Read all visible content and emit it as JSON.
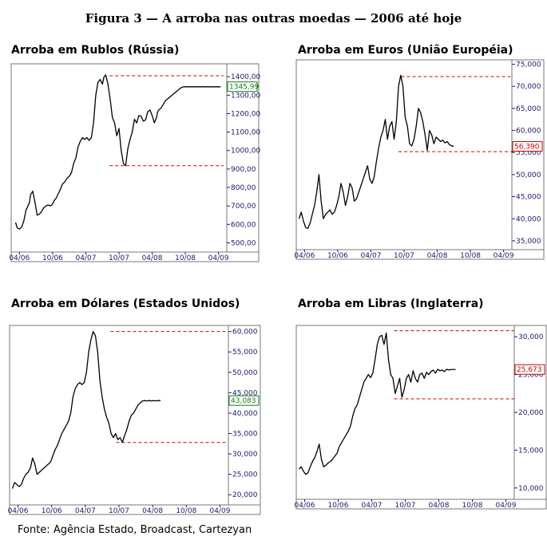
{
  "figure_title": "Figura 3 — A arroba nas outras moedas — 2006 até hoje",
  "source": "Fonte: Agência Estado, Broadcast, Cartezyan",
  "colors": {
    "line": "#000000",
    "reference": "#cc0000",
    "axis": "#1a1a6e",
    "frame": "#777777"
  },
  "chart_data": [
    {
      "type": "line",
      "title": "Arroba em Rublos (Rússia)",
      "x_ticks": [
        "04/06",
        "10/06",
        "04/07",
        "10/07",
        "04/08",
        "10/08",
        "04/09"
      ],
      "y_ticks": [
        "500,00",
        "600,00",
        "700,00",
        "800,00",
        "900,00",
        "1000,00",
        "1100,00",
        "1200,00",
        "1300,00",
        "1400,00"
      ],
      "y_tick_values": [
        500,
        600,
        700,
        800,
        900,
        1000,
        1100,
        1200,
        1300,
        1400
      ],
      "ylim": [
        450,
        1470
      ],
      "last_value_label": "1345,99",
      "last_value_color": "#1a7a1a",
      "reference_lines": [
        1405,
        918
      ],
      "x": [
        -0.7,
        -0.4,
        0.0,
        0.4,
        0.8,
        1.0,
        1.2,
        1.4,
        1.6,
        1.8,
        2.0,
        2.4,
        2.8,
        3.2,
        3.6,
        4.0,
        4.4,
        4.8,
        5.2,
        5.6,
        6.0,
        6.3,
        6.6,
        7.0,
        7.4,
        7.8,
        8.2,
        8.6,
        9.0,
        9.4,
        9.8,
        10.2,
        10.6,
        11.0,
        11.4,
        11.8,
        12.2,
        12.6,
        13.0,
        13.4,
        13.8,
        14.2,
        14.6,
        15.0,
        15.3,
        15.6,
        16.0,
        16.4,
        16.8,
        17.2,
        17.6,
        18.0,
        18.4,
        18.8,
        19.2,
        19.6,
        20.0,
        20.4,
        20.8,
        21.2,
        21.6,
        22.0,
        22.4,
        22.8,
        23.2,
        23.6,
        24.0,
        24.4,
        24.8,
        25.0,
        25.2,
        25.6,
        26.0,
        26.4,
        26.8,
        27.2,
        27.6,
        28.0,
        28.4,
        28.8,
        29.2,
        29.6,
        30.0,
        30.4,
        30.8,
        31.2,
        31.6,
        32.0,
        32.4,
        32.8,
        33.2,
        33.6,
        34.0,
        34.4,
        34.8,
        35.2,
        35.6,
        36.0,
        36.4
      ],
      "y": [
        610,
        580,
        575,
        585,
        620,
        650,
        680,
        690,
        705,
        715,
        760,
        780,
        720,
        650,
        655,
        670,
        690,
        700,
        705,
        700,
        710,
        730,
        740,
        765,
        790,
        820,
        830,
        850,
        860,
        880,
        930,
        960,
        1020,
        1050,
        1070,
        1060,
        1070,
        1055,
        1070,
        1150,
        1300,
        1370,
        1385,
        1360,
        1400,
        1410,
        1360,
        1280,
        1180,
        1150,
        1080,
        1120,
        1000,
        930,
        918,
        1010,
        1060,
        1100,
        1170,
        1150,
        1190,
        1185,
        1160,
        1165,
        1210,
        1220,
        1190,
        1150,
        1180,
        1210,
        1220,
        1230,
        1250,
        1270,
        1280,
        1290,
        1300,
        1310,
        1320,
        1330,
        1340,
        1345,
        1346,
        1345,
        1346,
        1345,
        1346,
        1345,
        1346,
        1345,
        1346,
        1345,
        1346,
        1345,
        1346,
        1345,
        1346,
        1345,
        1346
      ]
    },
    {
      "type": "line",
      "title": "Arroba em Euros (União Européia)",
      "x_ticks": [
        "04/06",
        "10/06",
        "04/07",
        "10/07",
        "04/08",
        "10/08",
        "04/09"
      ],
      "y_ticks": [
        "35,000",
        "40,000",
        "45,000",
        "50,000",
        "55,000",
        "60,000",
        "65,000",
        "70,000",
        "75,000"
      ],
      "y_tick_values": [
        35,
        40,
        45,
        50,
        55,
        60,
        65,
        70,
        75
      ],
      "ylim": [
        33,
        76
      ],
      "last_value_label": "56,390",
      "last_value_color": "#cc0000",
      "reference_lines": [
        72.2,
        55.2
      ],
      "x": [
        -1.0,
        -0.6,
        -0.2,
        0.2,
        0.6,
        1.0,
        1.4,
        1.8,
        2.2,
        2.6,
        3.0,
        3.4,
        3.8,
        4.2,
        4.6,
        5.0,
        5.4,
        5.8,
        6.2,
        6.6,
        7.0,
        7.4,
        7.8,
        8.2,
        8.6,
        9.0,
        9.4,
        9.8,
        10.2,
        10.6,
        11.0,
        11.4,
        11.8,
        12.2,
        12.6,
        13.0,
        13.4,
        13.8,
        14.2,
        14.6,
        15.0,
        15.4,
        15.8,
        16.2,
        16.6,
        17.0,
        17.4,
        17.8,
        18.2,
        18.6,
        19.0,
        19.4,
        19.8,
        20.2,
        20.6,
        21.0,
        21.4,
        21.8,
        22.2,
        22.6,
        23.0,
        23.4,
        23.8,
        24.2,
        24.6,
        25.0,
        25.4,
        25.8,
        26.2,
        26.6,
        27.0
      ],
      "y": [
        40.0,
        41.5,
        39.5,
        38.0,
        37.8,
        39.0,
        41.0,
        43.0,
        46.0,
        50.0,
        44.0,
        40.0,
        41.0,
        41.5,
        42.0,
        41.0,
        41.5,
        43.0,
        45.0,
        48.0,
        46.0,
        43.0,
        45.0,
        48.0,
        47.0,
        44.0,
        44.5,
        46.0,
        47.5,
        49.0,
        50.5,
        52.0,
        49.0,
        48.0,
        49.5,
        53.0,
        56.0,
        58.5,
        60.0,
        62.5,
        58.0,
        61.0,
        62.0,
        58.0,
        62.0,
        70.0,
        72.5,
        70.0,
        63.0,
        61.0,
        57.0,
        56.5,
        58.0,
        61.0,
        65.0,
        64.0,
        62.0,
        59.0,
        55.5,
        60.0,
        59.0,
        57.0,
        58.5,
        58.0,
        57.5,
        57.8,
        57.2,
        57.5,
        56.8,
        56.5,
        56.39
      ]
    },
    {
      "type": "line",
      "title": "Arroba em Dólares (Estados Unidos)",
      "x_ticks": [
        "04/06",
        "10/06",
        "04/07",
        "10/07",
        "04/08",
        "10/08",
        "04/09"
      ],
      "y_ticks": [
        "20,000",
        "25,000",
        "30,000",
        "35,000",
        "40,000",
        "45,000",
        "50,000",
        "55,000",
        "60,000"
      ],
      "y_tick_values": [
        20,
        25,
        30,
        35,
        40,
        45,
        50,
        55,
        60
      ],
      "ylim": [
        17.5,
        61.5
      ],
      "last_value_label": "43,083",
      "last_value_color": "#1a7a1a",
      "reference_lines": [
        60.0,
        32.8
      ],
      "x": [
        -1.0,
        -0.6,
        -0.2,
        0.2,
        0.6,
        1.0,
        1.4,
        1.8,
        2.2,
        2.6,
        3.0,
        3.4,
        3.8,
        4.2,
        4.6,
        5.0,
        5.4,
        5.8,
        6.2,
        6.6,
        7.0,
        7.4,
        7.8,
        8.2,
        8.6,
        9.0,
        9.4,
        9.8,
        10.2,
        10.6,
        11.0,
        11.4,
        11.8,
        12.2,
        12.6,
        13.0,
        13.4,
        13.8,
        14.2,
        14.6,
        15.0,
        15.4,
        15.8,
        16.2,
        16.6,
        17.0,
        17.4,
        17.8,
        18.2,
        18.6,
        19.0,
        19.4,
        19.8,
        20.2,
        20.6,
        21.0,
        21.4,
        21.8,
        22.2,
        22.6,
        23.0,
        23.4,
        23.8,
        24.2,
        24.6,
        25.0,
        25.4
      ],
      "y": [
        21.5,
        23.0,
        22.5,
        22.0,
        22.5,
        24.0,
        25.0,
        25.5,
        26.5,
        29.0,
        27.5,
        25.0,
        25.5,
        26.0,
        26.5,
        27.0,
        27.5,
        28.0,
        29.5,
        31.0,
        32.0,
        33.5,
        35.0,
        36.0,
        37.0,
        38.0,
        40.0,
        44.0,
        46.0,
        47.0,
        47.5,
        47.0,
        47.5,
        50.0,
        55.0,
        58.0,
        60.0,
        59.0,
        55.0,
        48.0,
        44.0,
        41.0,
        39.0,
        37.5,
        35.0,
        34.0,
        35.0,
        33.5,
        34.0,
        32.8,
        34.5,
        36.0,
        38.0,
        39.5,
        40.0,
        41.0,
        42.0,
        42.5,
        43.0,
        43.08,
        43.0,
        43.08,
        43.0,
        43.08,
        43.0,
        43.08,
        43.083
      ]
    },
    {
      "type": "line",
      "title": "Arroba em Libras (Inglaterra)",
      "x_ticks": [
        "04/06",
        "10/06",
        "04/07",
        "10/07",
        "04/08",
        "10/08",
        "04/09"
      ],
      "y_ticks": [
        "10,000",
        "15,000",
        "20,000",
        "25,000",
        "30,000"
      ],
      "y_tick_values": [
        10,
        15,
        20,
        25,
        30
      ],
      "ylim": [
        8.5,
        31.5
      ],
      "last_value_label": "25,673",
      "last_value_color": "#cc0000",
      "reference_lines": [
        30.8,
        21.8
      ],
      "x": [
        -1.0,
        -0.6,
        -0.2,
        0.2,
        0.6,
        1.0,
        1.4,
        1.8,
        2.2,
        2.6,
        3.0,
        3.4,
        3.8,
        4.2,
        4.6,
        5.0,
        5.4,
        5.8,
        6.2,
        6.6,
        7.0,
        7.4,
        7.8,
        8.2,
        8.6,
        9.0,
        9.4,
        9.8,
        10.2,
        10.6,
        11.0,
        11.4,
        11.8,
        12.2,
        12.6,
        13.0,
        13.4,
        13.8,
        14.2,
        14.6,
        15.0,
        15.4,
        15.8,
        16.2,
        16.6,
        17.0,
        17.4,
        17.8,
        18.2,
        18.6,
        19.0,
        19.4,
        19.8,
        20.2,
        20.6,
        21.0,
        21.4,
        21.8,
        22.2,
        22.6,
        23.0,
        23.4,
        23.8,
        24.2,
        24.6,
        25.0,
        25.4,
        25.8,
        26.2,
        26.6,
        27.0
      ],
      "y": [
        12.5,
        12.8,
        12.2,
        11.8,
        12.0,
        12.8,
        13.5,
        14.0,
        14.8,
        15.8,
        13.8,
        12.8,
        13.0,
        13.3,
        13.5,
        13.8,
        14.2,
        14.6,
        15.5,
        16.0,
        16.5,
        17.0,
        17.5,
        18.2,
        19.5,
        20.5,
        21.0,
        22.0,
        23.0,
        24.0,
        24.5,
        25.0,
        24.6,
        25.2,
        27.0,
        29.0,
        30.0,
        30.2,
        29.0,
        30.5,
        27.0,
        25.0,
        24.5,
        22.5,
        23.5,
        24.5,
        22.0,
        23.0,
        24.5,
        25.0,
        24.0,
        25.5,
        24.5,
        24.0,
        25.0,
        25.2,
        24.5,
        25.3,
        25.0,
        25.4,
        25.6,
        25.2,
        25.7,
        25.5,
        25.6,
        25.4,
        25.7,
        25.6,
        25.67,
        25.67,
        25.673
      ]
    }
  ]
}
